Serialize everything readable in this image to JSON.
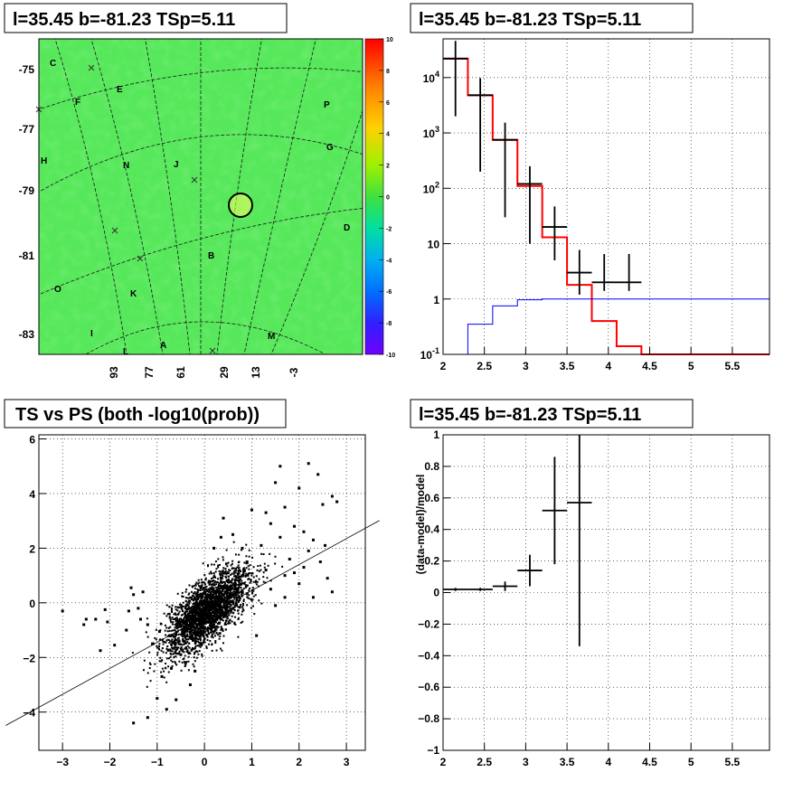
{
  "colors": {
    "map_background": "#56e85a",
    "model_total": "#ff0000",
    "model_background": "#0000ff",
    "data": "#000000"
  },
  "chart_data": [
    {
      "type": "heatmap",
      "panel": "top-left",
      "title": "l=35.45 b=-81.23 TSp=5.11",
      "y_tick_labels": [
        "-75",
        "-77",
        "-79",
        "-81",
        "-83"
      ],
      "x_tick_labels": [
        "93",
        "77",
        "61",
        "29",
        "13",
        "-3"
      ],
      "colorbar": {
        "min": -10,
        "max": 10,
        "ticks": [
          10,
          8,
          6,
          4,
          2,
          0,
          -2,
          -4,
          -6,
          -8,
          -10
        ]
      },
      "region_labels": [
        "C",
        "F",
        "E",
        "P",
        "G",
        "H",
        "N",
        "J",
        "D",
        "B",
        "O",
        "K",
        "I",
        "L",
        "A",
        "M"
      ],
      "source_marker": "circle"
    },
    {
      "type": "line",
      "panel": "top-right",
      "title": "l=35.45 b=-81.23 TSp=5.11",
      "yscale": "log",
      "xlim": [
        2,
        5.95
      ],
      "ylim": [
        0.1,
        50000
      ],
      "x_ticks": [
        2,
        2.5,
        3,
        3.5,
        4,
        4.5,
        5,
        5.5
      ],
      "y_tick_labels": [
        "10^-1",
        "1",
        "10",
        "10^2",
        "10^3",
        "10^4"
      ],
      "grid": true,
      "series": [
        {
          "role": "total-model",
          "style": "step",
          "color": "#ff0000",
          "bin_edges": [
            2.0,
            2.3,
            2.6,
            2.9,
            3.2,
            3.5,
            3.8,
            4.1,
            4.4,
            5.95
          ],
          "values": [
            22000,
            4800,
            750,
            110,
            13,
            1.8,
            0.4,
            0.14,
            0.1
          ]
        },
        {
          "role": "background-model",
          "style": "step",
          "color": "#0000ff",
          "bin_edges": [
            2.0,
            2.3,
            2.6,
            2.9,
            3.2,
            5.95
          ],
          "values": [
            0.1,
            0.35,
            0.75,
            0.97,
            1.0
          ]
        },
        {
          "role": "data",
          "style": "errorbar",
          "color": "#000000",
          "points": [
            {
              "x": 2.15,
              "y": 22000,
              "xerr": 0.15,
              "yerr_low": 20000,
              "yerr_high": 24000
            },
            {
              "x": 2.45,
              "y": 4800,
              "xerr": 0.15,
              "yerr_low": 4600,
              "yerr_high": 5000
            },
            {
              "x": 2.75,
              "y": 750,
              "xerr": 0.15,
              "yerr_low": 720,
              "yerr_high": 780
            },
            {
              "x": 3.05,
              "y": 120,
              "xerr": 0.15,
              "yerr_low": 110,
              "yerr_high": 130
            },
            {
              "x": 3.35,
              "y": 20,
              "xerr": 0.15,
              "yerr_low": 15,
              "yerr_high": 27
            },
            {
              "x": 3.65,
              "y": 3,
              "xerr": 0.15,
              "yerr_low": 1.8,
              "yerr_high": 4.7
            },
            {
              "x": 3.95,
              "y": 2,
              "xerr": 0.15,
              "yerr_low": 0.6,
              "yerr_high": 4.5
            },
            {
              "x": 4.25,
              "y": 2,
              "xerr": 0.15,
              "yerr_low": 0.6,
              "yerr_high": 4.5
            }
          ]
        }
      ]
    },
    {
      "type": "scatter",
      "panel": "bottom-left",
      "title": "TS vs PS (both -log10(prob))",
      "xlim": [
        -3.5,
        3.4
      ],
      "ylim": [
        -5.4,
        6.15
      ],
      "x_ticks": [
        -3,
        -2,
        -1,
        0,
        1,
        2,
        3
      ],
      "y_ticks": [
        -4,
        -2,
        0,
        2,
        4,
        6
      ],
      "grid": true,
      "reference_line": {
        "slope": 0.95,
        "intercept": -0.5
      },
      "points": [
        [
          -3.0,
          -0.3
        ],
        [
          -2.5,
          -0.6
        ],
        [
          -2.55,
          -0.8
        ],
        [
          -2.3,
          -0.6
        ],
        [
          -2.1,
          -0.25
        ],
        [
          -2.05,
          -0.7
        ],
        [
          -2.2,
          -1.75
        ],
        [
          -1.9,
          -1.55
        ],
        [
          -1.65,
          -1.0
        ],
        [
          -1.5,
          -4.4
        ],
        [
          -1.2,
          -4.2
        ],
        [
          -1.6,
          -0.3
        ],
        [
          -1.5,
          0.3
        ],
        [
          -1.55,
          0.55
        ],
        [
          -1.4,
          -0.2
        ],
        [
          -1.35,
          -0.6
        ],
        [
          -1.3,
          0.4
        ],
        [
          -1.2,
          -0.8
        ],
        [
          -1.0,
          -3.5
        ],
        [
          -0.8,
          -3.9
        ],
        [
          -0.6,
          -3.55
        ],
        [
          -0.9,
          -2.7
        ],
        [
          -0.7,
          -2.4
        ],
        [
          -0.5,
          -1.9
        ],
        [
          -0.3,
          -3.0
        ],
        [
          -0.2,
          -2.5
        ],
        [
          -0.4,
          -2.2
        ],
        [
          -1.1,
          -1.5
        ],
        [
          -0.95,
          -1.05
        ],
        [
          2.0,
          4.2
        ],
        [
          2.2,
          5.1
        ],
        [
          2.4,
          4.7
        ],
        [
          2.5,
          3.6
        ],
        [
          2.7,
          3.9
        ],
        [
          2.8,
          3.7
        ],
        [
          1.6,
          5.0
        ],
        [
          1.5,
          4.4
        ],
        [
          1.7,
          3.5
        ],
        [
          1.9,
          2.8
        ],
        [
          2.1,
          2.6
        ],
        [
          2.3,
          2.3
        ],
        [
          2.55,
          2.1
        ],
        [
          2.7,
          0.4
        ],
        [
          2.6,
          0.9
        ],
        [
          2.45,
          1.5
        ],
        [
          2.2,
          1.9
        ],
        [
          1.3,
          3.3
        ],
        [
          1.4,
          2.9
        ],
        [
          1.6,
          2.4
        ],
        [
          1.0,
          3.4
        ],
        [
          0.6,
          2.5
        ],
        [
          0.35,
          2.4
        ],
        [
          0.2,
          2.0
        ],
        [
          0.4,
          3.1
        ],
        [
          0.8,
          2.0
        ],
        [
          1.2,
          2.1
        ],
        [
          1.8,
          1.6
        ],
        [
          2.0,
          0.7
        ],
        [
          2.3,
          0.2
        ],
        [
          1.5,
          -0.1
        ],
        [
          1.1,
          -1.2
        ],
        [
          1.3,
          1.2
        ],
        [
          1.7,
          1.0
        ],
        [
          2.1,
          1.3
        ],
        [
          0.9,
          1.5
        ],
        [
          1.4,
          0.5
        ],
        [
          1.7,
          0.2
        ],
        [
          1.9,
          1.1
        ],
        [
          0.7,
          0.4
        ],
        [
          0.5,
          1.1
        ]
      ]
    },
    {
      "type": "line",
      "panel": "bottom-right",
      "title": "l=35.45 b=-81.23 TSp=5.11",
      "ylabel": "(data-model)/model",
      "xlim": [
        2,
        5.95
      ],
      "ylim": [
        -1,
        1
      ],
      "x_ticks": [
        2,
        2.5,
        3,
        3.5,
        4,
        4.5,
        5,
        5.5
      ],
      "y_ticks": [
        1,
        0.8,
        0.6,
        0.4,
        0.2,
        0,
        -0.2,
        -0.4,
        -0.6,
        -0.8,
        -1
      ],
      "grid": true,
      "series": [
        {
          "role": "residual",
          "style": "errorbar",
          "color": "#000000",
          "points": [
            {
              "x": 2.15,
              "y": 0.02,
              "xerr": 0.15,
              "yerr_low": 0.01,
              "yerr_high": 0.01
            },
            {
              "x": 2.45,
              "y": 0.02,
              "xerr": 0.15,
              "yerr_low": 0.01,
              "yerr_high": 0.01
            },
            {
              "x": 2.75,
              "y": 0.04,
              "xerr": 0.15,
              "yerr_low": 0.03,
              "yerr_high": 0.03
            },
            {
              "x": 3.05,
              "y": 0.14,
              "xerr": 0.15,
              "yerr_low": 0.1,
              "yerr_high": 0.1
            },
            {
              "x": 3.35,
              "y": 0.52,
              "xerr": 0.15,
              "yerr_low": 0.34,
              "yerr_high": 0.34
            },
            {
              "x": 3.65,
              "y": 0.57,
              "xerr": 0.15,
              "yerr_low": 0.91,
              "yerr_high": 0.43
            }
          ]
        }
      ]
    }
  ]
}
